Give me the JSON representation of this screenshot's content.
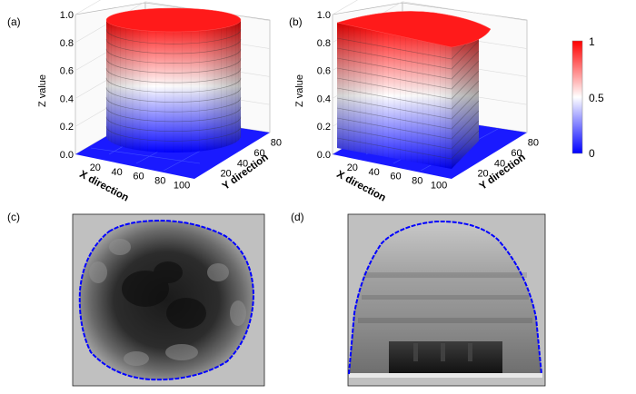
{
  "figure": {
    "panel_labels": [
      "(a)",
      "(b)",
      "(c)",
      "(d)"
    ]
  },
  "colors": {
    "colormap_low": "#0000ff",
    "colormap_mid": "#ffffff",
    "colormap_high": "#ff0000",
    "image_background": "#c0c0c0",
    "contour_outline": "#0000ff"
  },
  "chart_data": [
    {
      "panel": "(a)",
      "type": "surface3d",
      "shape": "cylinder",
      "xlabel": "X direction",
      "ylabel": "Y direction",
      "zlabel": "Z value",
      "x_ticks": [
        "20",
        "40",
        "60",
        "80",
        "100"
      ],
      "y_ticks": [
        "20",
        "40",
        "60",
        "80"
      ],
      "z_ticks": [
        "0.0",
        "0.2",
        "0.4",
        "0.6",
        "0.8",
        "1.0"
      ],
      "xlim": [
        0,
        110
      ],
      "ylim": [
        0,
        90
      ],
      "zlim": [
        0,
        1
      ],
      "floor_value": 0,
      "top_value": 1
    },
    {
      "panel": "(b)",
      "type": "surface3d",
      "shape": "dome-profile prism",
      "xlabel": "X direction",
      "ylabel": "Y direction",
      "zlabel": "Z value",
      "x_ticks": [
        "20",
        "40",
        "60",
        "80",
        "100"
      ],
      "y_ticks": [
        "20",
        "40",
        "60",
        "80"
      ],
      "z_ticks": [
        "0.0",
        "0.2",
        "0.4",
        "0.6",
        "0.8",
        "1.0"
      ],
      "xlim": [
        0,
        110
      ],
      "ylim": [
        0,
        90
      ],
      "zlim": [
        0,
        1
      ],
      "floor_value": 0,
      "top_value": 1
    },
    {
      "panel": "colorbar",
      "type": "colorbar",
      "ticks": [
        "1",
        "0.5",
        "0"
      ],
      "range": [
        0,
        1
      ]
    },
    {
      "panel": "(c)",
      "type": "grayscale-image",
      "shape": "circular cross-section",
      "outline": "blue contour"
    },
    {
      "panel": "(d)",
      "type": "grayscale-image",
      "shape": "dome cross-section",
      "outline": "blue contour"
    }
  ]
}
